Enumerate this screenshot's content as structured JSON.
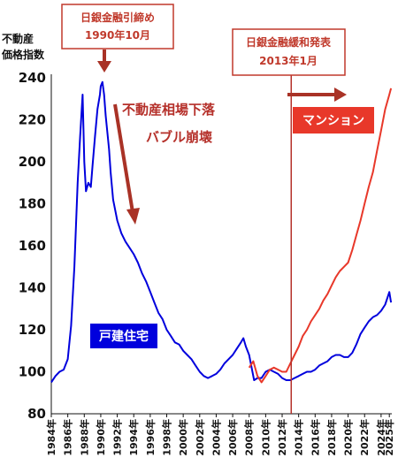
{
  "chart_data": {
    "type": "line",
    "ylabel_lines": [
      "不動産",
      "価格指数"
    ],
    "ylim": [
      80,
      240
    ],
    "yticks": [
      80,
      100,
      120,
      140,
      160,
      180,
      200,
      220,
      240
    ],
    "xlim": [
      1984,
      2025.3
    ],
    "xticks": [
      "1984年",
      "1986年",
      "1988年",
      "1990年",
      "1992年",
      "1994年",
      "1996年",
      "1998年",
      "2000年",
      "2002年",
      "2004年",
      "2006年",
      "2008年",
      "2010年",
      "2012年",
      "2014年",
      "2016年",
      "2018年",
      "2020年",
      "2022年",
      "2024年",
      "2025年"
    ],
    "series": [
      {
        "name": "戸建住宅",
        "color": "#0000dd",
        "x": [
          1984.0,
          1984.5,
          1985.0,
          1985.5,
          1986.0,
          1986.4,
          1986.8,
          1987.2,
          1987.5,
          1987.8,
          1988.0,
          1988.2,
          1988.5,
          1988.8,
          1989.0,
          1989.3,
          1989.6,
          1989.9,
          1990.0,
          1990.2,
          1990.4,
          1990.6,
          1990.8,
          1991.0,
          1991.2,
          1991.5,
          1992.0,
          1992.5,
          1993.0,
          1993.5,
          1994.0,
          1994.5,
          1995.0,
          1995.5,
          1996.0,
          1996.5,
          1997.0,
          1997.5,
          1998.0,
          1998.5,
          1999.0,
          1999.5,
          2000.0,
          2000.5,
          2001.0,
          2001.5,
          2002.0,
          2002.5,
          2003.0,
          2003.5,
          2004.0,
          2004.5,
          2005.0,
          2005.5,
          2006.0,
          2006.5,
          2007.0,
          2007.3,
          2007.6,
          2008.0,
          2008.3,
          2008.6,
          2009.0,
          2009.5,
          2010.0,
          2010.5,
          2011.0,
          2011.5,
          2012.0,
          2012.5,
          2013.0,
          2013.5,
          2014.0,
          2014.5,
          2015.0,
          2015.5,
          2016.0,
          2016.5,
          2017.0,
          2017.5,
          2018.0,
          2018.5,
          2019.0,
          2019.5,
          2020.0,
          2020.5,
          2021.0,
          2021.5,
          2022.0,
          2022.5,
          2023.0,
          2023.5,
          2024.0,
          2024.5,
          2025.0,
          2025.2
        ],
        "values": [
          95,
          98,
          100,
          101,
          106,
          122,
          150,
          190,
          212,
          232,
          200,
          186,
          190,
          188,
          198,
          212,
          225,
          232,
          236,
          238,
          232,
          222,
          214,
          206,
          195,
          182,
          172,
          166,
          162,
          159,
          156,
          152,
          147,
          143,
          138,
          133,
          128,
          125,
          120,
          117,
          114,
          113,
          110,
          108,
          106,
          103,
          100,
          98,
          97,
          98,
          99,
          101,
          104,
          106,
          108,
          111,
          114,
          116,
          112,
          108,
          102,
          96,
          97,
          97,
          100,
          101,
          100,
          99,
          97,
          96,
          96,
          97,
          98,
          99,
          100,
          100,
          101,
          103,
          104,
          105,
          107,
          108,
          108,
          107,
          107,
          109,
          113,
          118,
          121,
          124,
          126,
          127,
          129,
          132,
          138,
          133
        ]
      },
      {
        "name": "マンション",
        "color": "#e8382a",
        "x": [
          2008.0,
          2008.5,
          2009.0,
          2009.5,
          2010.0,
          2010.5,
          2011.0,
          2011.5,
          2012.0,
          2012.5,
          2013.0,
          2013.5,
          2014.0,
          2014.5,
          2015.0,
          2015.5,
          2016.0,
          2016.5,
          2017.0,
          2017.5,
          2018.0,
          2018.5,
          2019.0,
          2019.5,
          2020.0,
          2020.5,
          2021.0,
          2021.5,
          2022.0,
          2022.5,
          2023.0,
          2023.5,
          2024.0,
          2024.5,
          2025.0,
          2025.2
        ],
        "values": [
          102,
          105,
          98,
          95,
          98,
          101,
          102,
          101,
          100,
          100,
          104,
          108,
          112,
          117,
          120,
          124,
          127,
          130,
          134,
          137,
          141,
          145,
          148,
          150,
          152,
          158,
          165,
          172,
          180,
          188,
          195,
          205,
          215,
          225,
          232,
          235
        ]
      }
    ],
    "annotations": {
      "boj_tightening_lines": [
        "日銀金融引締め",
        "1990年10月"
      ],
      "bubble_lines": [
        "不動産相場下落",
        "バブル崩壊"
      ],
      "boj_easing_lines": [
        "日銀金融緩和発表",
        "2013年1月"
      ]
    }
  }
}
